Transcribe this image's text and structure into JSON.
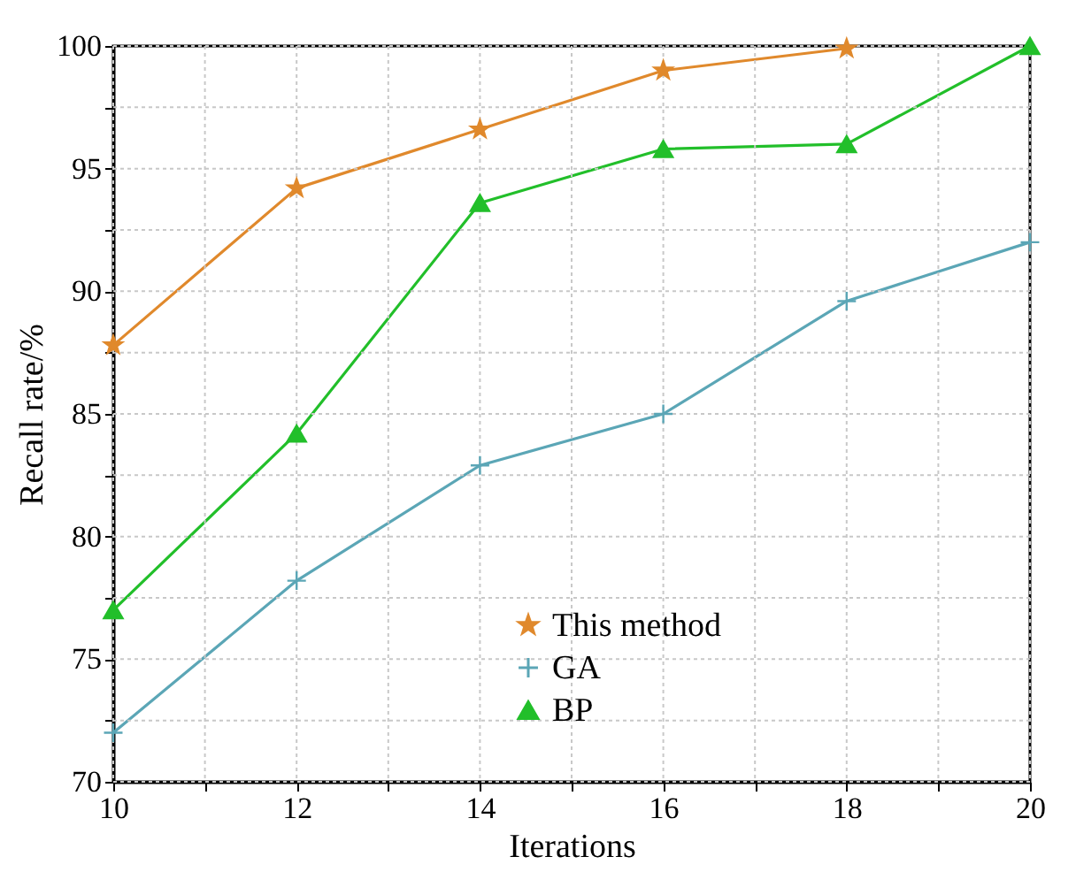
{
  "chart_data": {
    "type": "line",
    "xlabel": "Iterations",
    "ylabel": "Recall rate/%",
    "x": [
      10,
      12,
      14,
      16,
      18,
      20
    ],
    "series": [
      {
        "name": "This method",
        "color": "#e0892c",
        "marker": "star",
        "values": [
          87.8,
          94.2,
          96.6,
          99.0,
          99.9,
          null
        ]
      },
      {
        "name": "GA",
        "color": "#5ba6b6",
        "marker": "cross",
        "values": [
          72.0,
          78.2,
          82.9,
          85.0,
          89.6,
          92.0
        ]
      },
      {
        "name": "BP",
        "color": "#22bf2a",
        "marker": "triangle",
        "values": [
          77.0,
          84.2,
          93.6,
          95.8,
          96.0,
          100.0
        ]
      }
    ],
    "xlim": [
      10,
      20
    ],
    "xticks": [
      10,
      {
        "value": 11,
        "label": null
      },
      12,
      {
        "value": 13,
        "label": null
      },
      14,
      {
        "value": 15,
        "label": null
      },
      16,
      {
        "value": 17,
        "label": null
      },
      18,
      {
        "value": 19,
        "label": null
      },
      20
    ],
    "ylim": [
      70,
      100
    ],
    "yticks": [
      70,
      {
        "value": 72.5,
        "label": null
      },
      75,
      {
        "value": 77.5,
        "label": null
      },
      80,
      {
        "value": 82.5,
        "label": null
      },
      85,
      {
        "value": 87.5,
        "label": null
      },
      90,
      {
        "value": 92.5,
        "label": null
      },
      95,
      {
        "value": 97.5,
        "label": null
      },
      100
    ],
    "grid": true,
    "legend": "bottom",
    "line_style": "solid"
  }
}
